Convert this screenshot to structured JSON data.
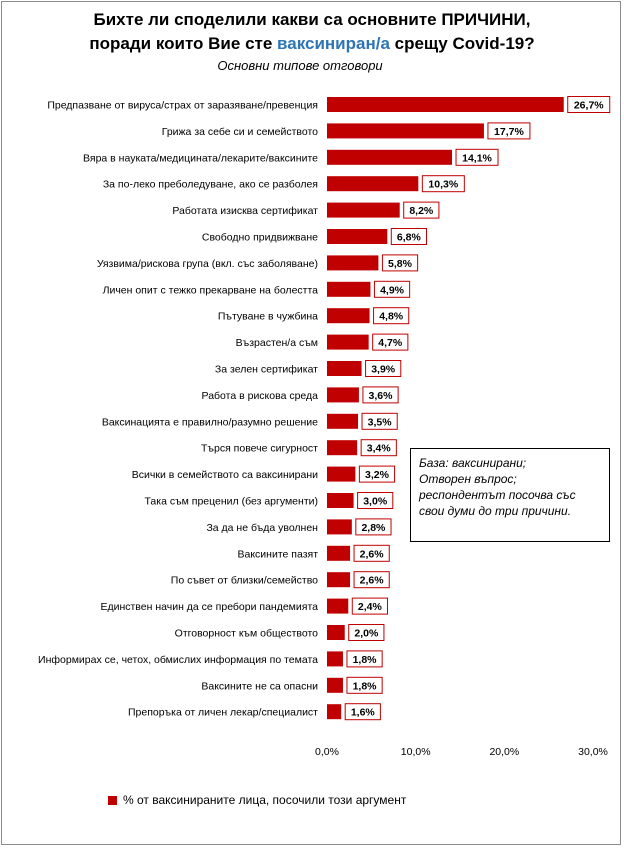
{
  "title": {
    "line1": "Бихте ли споделили какви са основните ПРИЧИНИ,",
    "line2_pre": "поради които Вие сте ",
    "line2_highlight": "ваксиниран/а",
    "line2_post": " срещу Covid-19?",
    "subtitle": "Основни типове отговори"
  },
  "note": {
    "line1": "База: ваксинирани;",
    "line2": "Отворен въпрос;",
    "line3": "респондентът посочва със свои думи до три причини."
  },
  "legend": {
    "label": "% от ваксинираните лица, посочили този аргумент"
  },
  "colors": {
    "bar": "#c00000",
    "highlight": "#2e75b6"
  },
  "chart_data": {
    "type": "bar",
    "orientation": "horizontal",
    "categories": [
      "Предпазване от вируса/страх от заразяване/превенция",
      "Грижа за себе си и семейството",
      "Вяра в науката/медицината/лекарите/ваксините",
      "За по-леко преболедуване, ако се разболея",
      "Работата изисква сертификат",
      "Свободно придвижване",
      "Уязвима/рискова група (вкл. със заболяване)",
      "Личен опит с тежко прекарване на болестта",
      "Пътуване в чужбина",
      "Възрастен/а съм",
      "За зелен сертификат",
      "Работа в рискова среда",
      "Ваксинацията е правилно/разумно решение",
      "Търся повече сигурност",
      "Всички в семейството са ваксинирани",
      "Така съм преценил (без аргументи)",
      "За да не бъда уволнен",
      "Ваксините пазят",
      "По съвет от близки/семейство",
      "Единствен начин да се пребори пандемията",
      "Отговорност към обществото",
      "Информирах се, четох, обмислих информация по темата",
      "Ваксините не са опасни",
      "Препоръка от личен лекар/специалист"
    ],
    "values": [
      26.7,
      17.7,
      14.1,
      10.3,
      8.2,
      6.8,
      5.8,
      4.9,
      4.8,
      4.7,
      3.9,
      3.6,
      3.5,
      3.4,
      3.2,
      3.0,
      2.8,
      2.6,
      2.6,
      2.4,
      2.0,
      1.8,
      1.8,
      1.6
    ],
    "value_labels": [
      "26,7%",
      "17,7%",
      "14,1%",
      "10,3%",
      "8,2%",
      "6,8%",
      "5,8%",
      "4,9%",
      "4,8%",
      "4,7%",
      "3,9%",
      "3,6%",
      "3,5%",
      "3,4%",
      "3,2%",
      "3,0%",
      "2,8%",
      "2,6%",
      "2,6%",
      "2,4%",
      "2,0%",
      "1,8%",
      "1,8%",
      "1,6%"
    ],
    "xlim": [
      0,
      30
    ],
    "xticks": [
      0,
      10,
      20,
      30
    ],
    "xtick_labels": [
      "0,0%",
      "10,0%",
      "20,0%",
      "30,0%"
    ],
    "series_name": "% от ваксинираните лица, посочили този аргумент"
  }
}
